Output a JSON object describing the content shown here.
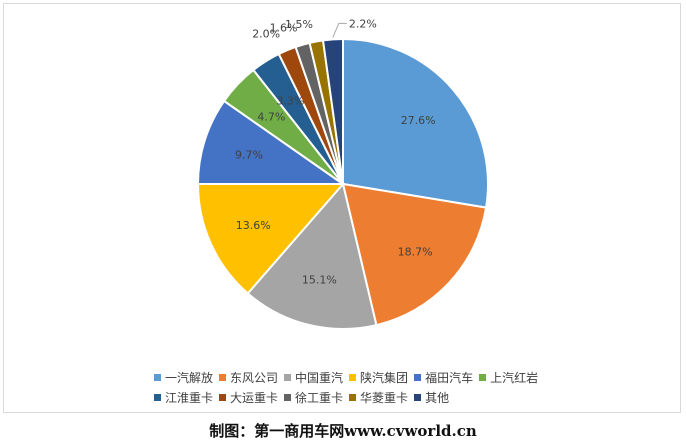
{
  "chart_data": {
    "type": "pie",
    "categories": [
      "一汽解放",
      "东风公司",
      "中国重汽",
      "陕汽集团",
      "福田汽车",
      "上汽红岩",
      "江淮重卡",
      "大运重卡",
      "徐工重卡",
      "华菱重卡",
      "其他"
    ],
    "values": [
      27.6,
      18.7,
      15.1,
      13.6,
      9.7,
      4.7,
      3.3,
      2.0,
      1.6,
      1.5,
      2.2
    ],
    "labels": [
      "27.6%",
      "18.7%",
      "15.1%",
      "13.6%",
      "9.7%",
      "4.7%",
      "3.3%",
      "2.0%",
      "1.6%",
      "1.5%",
      "2.2%"
    ],
    "colors": [
      "#5b9bd5",
      "#ed7d31",
      "#a5a5a5",
      "#ffc000",
      "#4472c4",
      "#70ad47",
      "#255e91",
      "#9e480e",
      "#636363",
      "#997300",
      "#264478"
    ],
    "start_angle_deg": 0,
    "direction": "clockwise",
    "legend_position": "bottom"
  },
  "caption": "制图：第一商用车网www.cvworld.cn"
}
